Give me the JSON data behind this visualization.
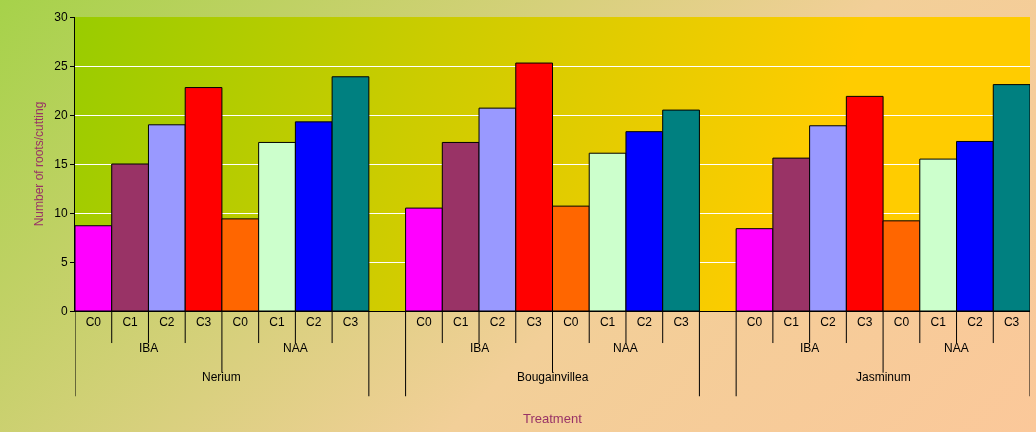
{
  "chart_data": {
    "type": "bar",
    "ylabel": "Number of roots/cutting",
    "categories": [
      "C0",
      "C1",
      "C2",
      "C3",
      "C0",
      "C1",
      "C2",
      "C3",
      null,
      "C0",
      "C1",
      "C2",
      "C3",
      "C0",
      "C1",
      "C2",
      "C3",
      null,
      "C0",
      "C1",
      "C2",
      "C3",
      "C0",
      "C1",
      "C2",
      "C3"
    ],
    "values": [
      8.7,
      15.0,
      19.0,
      22.8,
      9.4,
      17.2,
      19.3,
      23.9,
      null,
      10.5,
      17.2,
      20.7,
      25.3,
      10.7,
      16.1,
      18.3,
      20.5,
      null,
      8.4,
      15.6,
      18.9,
      21.9,
      9.2,
      15.5,
      17.3,
      23.1
    ],
    "colors": [
      "#ff00ff",
      "#993366",
      "#9999ff",
      "#ff0000",
      "#ff6600",
      "#ccffcc",
      "#0000ff",
      "#008080",
      "#ffffff",
      "#ff00ff",
      "#993366",
      "#9999ff",
      "#ff0000",
      "#ff6600",
      "#ccffcc",
      "#0000ff",
      "#008080",
      "#ffffff",
      "#ff00ff",
      "#993366",
      "#9999ff",
      "#ff0000",
      "#ff6600",
      "#ccffcc",
      "#0000ff",
      "#008080"
    ],
    "annotations": [
      "IBA",
      "NAA",
      "Nerium",
      "IBA",
      "NAA",
      "Bougainvillea",
      "IBA",
      "NAA",
      "Jasminum",
      "Treatment"
    ],
    "ylim": [
      0,
      30
    ],
    "yticks": [
      0,
      5,
      10,
      15,
      20,
      25,
      30
    ],
    "grid": "y"
  }
}
